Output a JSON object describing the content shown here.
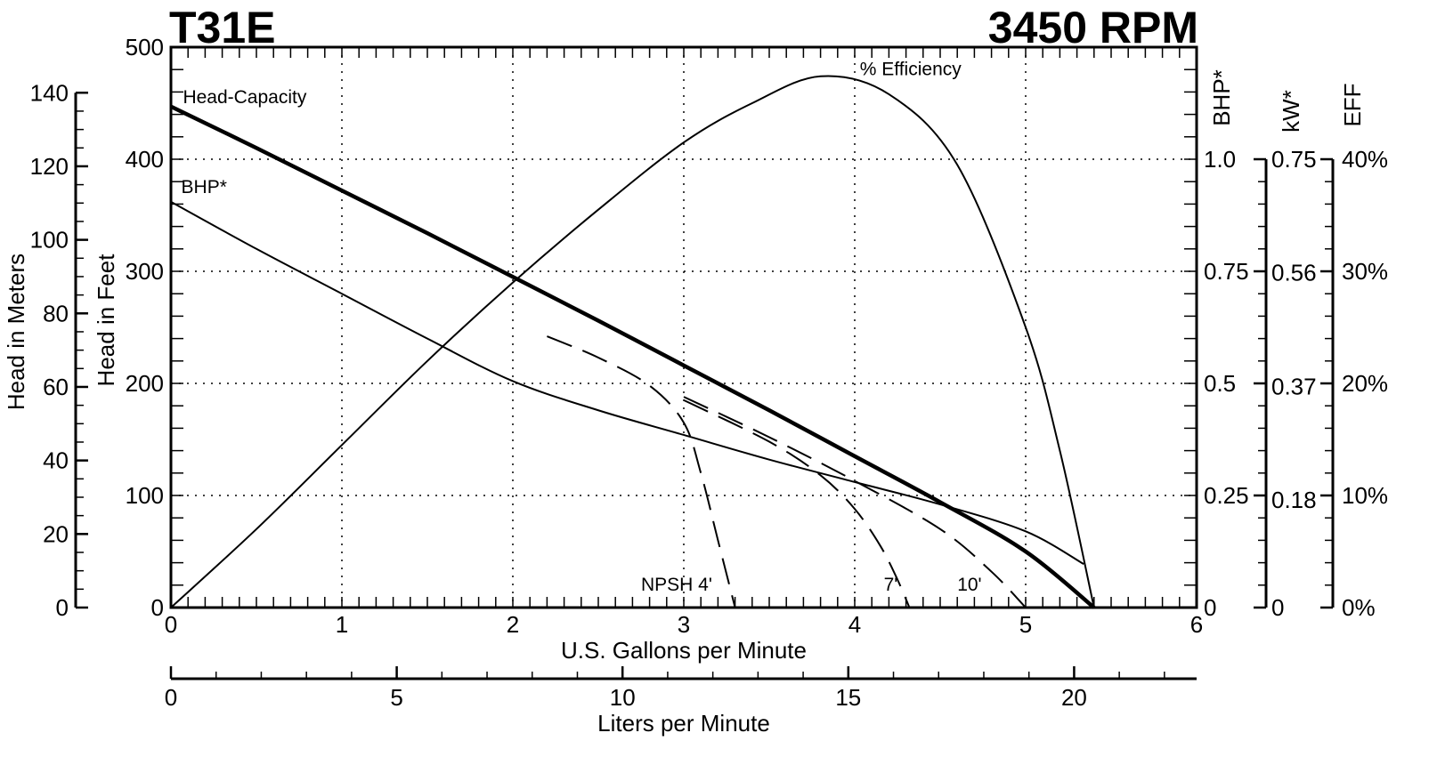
{
  "header": {
    "model": "T31E",
    "speed": "3450 RPM"
  },
  "chart_data": {
    "type": "line",
    "title": "T31E",
    "subtitle": "3450 RPM",
    "xlabel": "U.S. Gallons per Minute",
    "xlabel_secondary": "Liters per Minute",
    "ylabel": "Head in Feet",
    "ylabel_secondary": "Head in Meters",
    "right_axes": [
      "BHP*",
      "kW*",
      "EFF"
    ],
    "xlim": [
      0,
      6
    ],
    "ylim": [
      0,
      500
    ],
    "grid": "dotted",
    "legend": "inline labels",
    "axes": {
      "x_gpm": {
        "ticks": [
          0,
          1,
          2,
          3,
          4,
          5,
          6
        ],
        "labels": [
          "0",
          "1",
          "2",
          "3",
          "4",
          "5",
          "6"
        ]
      },
      "x_lpm": {
        "ticks": [
          0,
          5,
          10,
          15,
          20
        ],
        "labels": [
          "0",
          "5",
          "10",
          "15",
          "20"
        ],
        "range": [
          0,
          22.7
        ]
      },
      "y_feet": {
        "ticks": [
          0,
          100,
          200,
          300,
          400,
          500
        ],
        "labels": [
          "0",
          "100",
          "200",
          "300",
          "400",
          "500"
        ]
      },
      "y_meters": {
        "ticks": [
          0,
          20,
          40,
          60,
          80,
          100,
          120,
          140
        ],
        "labels": [
          "0",
          "20",
          "40",
          "60",
          "80",
          "100",
          "120",
          "140"
        ]
      },
      "y_bhp": {
        "ticks": [
          0,
          0.25,
          0.5,
          0.75,
          1.0
        ],
        "labels": [
          "0",
          "0.25",
          "0.5",
          "0.75",
          "1.0"
        ]
      },
      "y_kw": {
        "ticks": [
          0,
          0.18,
          0.37,
          0.56,
          0.75
        ],
        "labels": [
          "0",
          "0.18",
          "0.37",
          "0.56",
          "0.75"
        ]
      },
      "y_eff": {
        "ticks": [
          0,
          10,
          20,
          30,
          40
        ],
        "labels": [
          "0%",
          "10%",
          "20%",
          "30%",
          "40%"
        ]
      }
    },
    "series": [
      {
        "name": "Head-Capacity",
        "unit": "ft",
        "style": "thick",
        "x": [
          0,
          0.5,
          1,
          1.5,
          2,
          2.5,
          3,
          3.5,
          4,
          4.5,
          5,
          5.4
        ],
        "values": [
          447,
          410,
          372,
          334,
          295,
          256,
          216,
          176,
          135,
          94,
          50,
          0
        ]
      },
      {
        "name": "BHP*",
        "unit": "hp",
        "style": "thin",
        "x": [
          0,
          0.5,
          1,
          1.5,
          2,
          2.5,
          3,
          3.5,
          4,
          4.5,
          5,
          5.34
        ],
        "values": [
          0.905,
          0.8,
          0.7,
          0.6,
          0.505,
          0.44,
          0.385,
          0.33,
          0.28,
          0.23,
          0.17,
          0.097
        ]
      },
      {
        "name": "% Efficiency",
        "unit": "%",
        "style": "thin",
        "x": [
          0,
          0.5,
          1,
          1.5,
          2,
          2.5,
          3,
          3.4,
          3.8,
          4.2,
          4.6,
          5.0,
          5.2,
          5.4
        ],
        "values": [
          0,
          7,
          14.5,
          22,
          29,
          35.5,
          41.5,
          45,
          47.4,
          45.8,
          39.5,
          25,
          14,
          0
        ]
      },
      {
        "name": "NPSH 4'",
        "unit": "ft",
        "style": "dashed",
        "x": [
          2.2,
          2.5,
          2.8,
          3.0,
          3.1,
          3.2,
          3.3
        ],
        "values": [
          242,
          223,
          198,
          165,
          120,
          60,
          0
        ]
      },
      {
        "name": "NPSH 7'",
        "unit": "ft",
        "style": "dashed",
        "x": [
          3.0,
          3.5,
          3.8,
          4.0,
          4.15,
          4.25,
          4.32
        ],
        "values": [
          185,
          148,
          118,
          88,
          55,
          25,
          0
        ]
      },
      {
        "name": "NPSH 10'",
        "unit": "ft",
        "style": "dashed",
        "x": [
          3.0,
          3.5,
          4.0,
          4.5,
          4.8,
          5.0
        ],
        "values": [
          188,
          152,
          113,
          70,
          32,
          0
        ]
      }
    ],
    "annotations": [
      {
        "text": "Head-Capacity",
        "x": 0.07,
        "y": 450
      },
      {
        "text": "BHP*",
        "x": 0.06,
        "y": 370
      },
      {
        "text": "% Efficiency",
        "x": 4.03,
        "y": 475
      },
      {
        "text": "NPSH  4'",
        "x": 2.75,
        "y": 15
      },
      {
        "text": "7'",
        "x": 4.17,
        "y": 15
      },
      {
        "text": "10'",
        "x": 4.6,
        "y": 15
      }
    ]
  }
}
